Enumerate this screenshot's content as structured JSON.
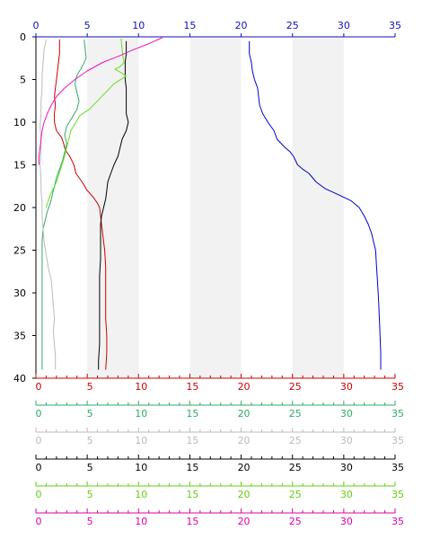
{
  "chart_data": {
    "type": "line",
    "orientation": "vertical-profile",
    "y_axis": {
      "min": 0,
      "max": 40,
      "ticks": [
        0,
        5,
        10,
        15,
        20,
        25,
        30,
        35,
        40
      ],
      "inverted": true,
      "color": "#000000"
    },
    "top_axis": {
      "min": 0,
      "max": 35,
      "ticks": [
        0,
        5,
        10,
        15,
        20,
        25,
        30,
        35
      ],
      "color": "#1111bb"
    },
    "bottom_axes": [
      {
        "min": 0,
        "max": 35,
        "ticks": [
          0,
          5,
          10,
          15,
          20,
          25,
          30,
          35
        ],
        "color": "#cc0000"
      },
      {
        "min": 0,
        "max": 35,
        "ticks": [
          0,
          5,
          10,
          15,
          20,
          25,
          30,
          35
        ],
        "color": "#33aa66"
      },
      {
        "min": 0,
        "max": 35,
        "ticks": [
          0,
          5,
          10,
          15,
          20,
          25,
          30,
          35
        ],
        "color": "#bbbbbb"
      },
      {
        "min": 0,
        "max": 35,
        "ticks": [
          0,
          5,
          10,
          15,
          20,
          25,
          30,
          35
        ],
        "color": "#000000"
      },
      {
        "min": 0,
        "max": 35,
        "ticks": [
          0,
          5,
          10,
          15,
          20,
          25,
          30,
          35
        ],
        "color": "#66cc11"
      },
      {
        "min": 0,
        "max": 35,
        "ticks": [
          0,
          5,
          10,
          15,
          20,
          25,
          30,
          35
        ],
        "color": "#dd00aa"
      }
    ],
    "shaded_bands": [
      [
        5,
        10
      ],
      [
        15,
        20
      ],
      [
        25,
        30
      ]
    ],
    "band_color": "#f2f2f2",
    "series": [
      {
        "color": "#0000cc",
        "points": [
          [
            20.8,
            0.5
          ],
          [
            20.8,
            2
          ],
          [
            21,
            3
          ],
          [
            21.1,
            4
          ],
          [
            21.3,
            5
          ],
          [
            21.6,
            6
          ],
          [
            21.7,
            7
          ],
          [
            21.8,
            8
          ],
          [
            22.1,
            9
          ],
          [
            22.6,
            10
          ],
          [
            23.2,
            11
          ],
          [
            23.5,
            12
          ],
          [
            24.3,
            13
          ],
          [
            24.8,
            13.5
          ],
          [
            25.1,
            14
          ],
          [
            25.5,
            15
          ],
          [
            26,
            15.5
          ],
          [
            26.6,
            16
          ],
          [
            27.3,
            17
          ],
          [
            28.2,
            17.8
          ],
          [
            29.5,
            18.5
          ],
          [
            30.7,
            19.2
          ],
          [
            31.5,
            20
          ],
          [
            32,
            21
          ],
          [
            32.4,
            22
          ],
          [
            32.7,
            23
          ],
          [
            32.9,
            24
          ],
          [
            33.1,
            25
          ],
          [
            33.2,
            27
          ],
          [
            33.3,
            29
          ],
          [
            33.4,
            31
          ],
          [
            33.5,
            34
          ],
          [
            33.6,
            37
          ],
          [
            33.6,
            39
          ]
        ]
      },
      {
        "color": "#cc0000",
        "points": [
          [
            2.3,
            0.3
          ],
          [
            2.3,
            2
          ],
          [
            2.2,
            3
          ],
          [
            2.1,
            4
          ],
          [
            2,
            5
          ],
          [
            1.9,
            6
          ],
          [
            1.8,
            7
          ],
          [
            1.9,
            8
          ],
          [
            1.8,
            9
          ],
          [
            1.8,
            10
          ],
          [
            2,
            11
          ],
          [
            2.5,
            11.8
          ],
          [
            2.7,
            12.5
          ],
          [
            2.8,
            13
          ],
          [
            3,
            13.5
          ],
          [
            3.3,
            14
          ],
          [
            3.5,
            14.5
          ],
          [
            3.7,
            15
          ],
          [
            3.9,
            16
          ],
          [
            4.5,
            17
          ],
          [
            5,
            18
          ],
          [
            5.6,
            18.8
          ],
          [
            6,
            19.5
          ],
          [
            6.2,
            20
          ],
          [
            6.3,
            21
          ],
          [
            6.4,
            22
          ],
          [
            6.5,
            23
          ],
          [
            6.6,
            24
          ],
          [
            6.7,
            25
          ],
          [
            6.8,
            27
          ],
          [
            6.8,
            29
          ],
          [
            6.8,
            31
          ],
          [
            6.8,
            33
          ],
          [
            6.9,
            35
          ],
          [
            6.9,
            37
          ],
          [
            6.8,
            39
          ]
        ]
      },
      {
        "color": "#33aa66",
        "points": [
          [
            4.7,
            0.3
          ],
          [
            4.8,
            1.5
          ],
          [
            4.9,
            2.5
          ],
          [
            4.5,
            3.5
          ],
          [
            4,
            4.5
          ],
          [
            3.8,
            5.5
          ],
          [
            4,
            6.5
          ],
          [
            4.2,
            7.5
          ],
          [
            4,
            8.5
          ],
          [
            3.5,
            9.5
          ],
          [
            3,
            10.5
          ],
          [
            2.8,
            11.5
          ],
          [
            3,
            12.5
          ],
          [
            2.8,
            13.5
          ],
          [
            2.6,
            14.5
          ],
          [
            2.3,
            15.5
          ],
          [
            2,
            16.5
          ],
          [
            1.8,
            17.5
          ],
          [
            1.6,
            18.5
          ],
          [
            1.4,
            19.5
          ],
          [
            1.1,
            20.5
          ],
          [
            0.9,
            21.5
          ],
          [
            0.7,
            22.5
          ],
          [
            0.6,
            24
          ],
          [
            0.6,
            26
          ],
          [
            0.6,
            28
          ],
          [
            0.6,
            30
          ],
          [
            0.6,
            32
          ],
          [
            0.6,
            34
          ],
          [
            0.6,
            36
          ],
          [
            0.6,
            38
          ],
          [
            0.6,
            39
          ]
        ]
      },
      {
        "color": "#bbbbbb",
        "points": [
          [
            1,
            0.3
          ],
          [
            0.8,
            1.5
          ],
          [
            0.7,
            3
          ],
          [
            0.6,
            4.5
          ],
          [
            0.6,
            6
          ],
          [
            0.5,
            7.5
          ],
          [
            0.5,
            9
          ],
          [
            0.4,
            10.5
          ],
          [
            0.5,
            12
          ],
          [
            0.5,
            13.5
          ],
          [
            0.4,
            15
          ],
          [
            0.5,
            16.5
          ],
          [
            0.5,
            18
          ],
          [
            0.6,
            19.5
          ],
          [
            0.6,
            21
          ],
          [
            0.7,
            22.5
          ],
          [
            0.8,
            24
          ],
          [
            1,
            25.5
          ],
          [
            1.2,
            27
          ],
          [
            1.5,
            28.5
          ],
          [
            1.6,
            30
          ],
          [
            1.7,
            31.5
          ],
          [
            1.8,
            33
          ],
          [
            1.7,
            34.5
          ],
          [
            1.8,
            36
          ],
          [
            1.9,
            37.5
          ],
          [
            1.9,
            39
          ]
        ]
      },
      {
        "color": "#000000",
        "points": [
          [
            8.8,
            0.5
          ],
          [
            8.8,
            2
          ],
          [
            8.7,
            3
          ],
          [
            8.7,
            4
          ],
          [
            8.7,
            5
          ],
          [
            8.8,
            6
          ],
          [
            8.8,
            7
          ],
          [
            8.8,
            8
          ],
          [
            8.8,
            9
          ],
          [
            9,
            10
          ],
          [
            8.8,
            11
          ],
          [
            8.4,
            12
          ],
          [
            8.2,
            13
          ],
          [
            8,
            14
          ],
          [
            7.6,
            15
          ],
          [
            7.3,
            16
          ],
          [
            7,
            17
          ],
          [
            6.9,
            18
          ],
          [
            6.8,
            19
          ],
          [
            6.6,
            20
          ],
          [
            6.4,
            21
          ],
          [
            6.3,
            22
          ],
          [
            6.3,
            23
          ],
          [
            6.3,
            24
          ],
          [
            6.3,
            26
          ],
          [
            6.2,
            28
          ],
          [
            6.2,
            30
          ],
          [
            6.2,
            32
          ],
          [
            6.2,
            34
          ],
          [
            6.2,
            36
          ],
          [
            6.1,
            38
          ],
          [
            6.1,
            39
          ]
        ]
      },
      {
        "color": "#66dd22",
        "points": [
          [
            8.3,
            0.2
          ],
          [
            8.4,
            1.5
          ],
          [
            8.5,
            2.5
          ],
          [
            8.6,
            3
          ],
          [
            8.2,
            3.5
          ],
          [
            7.7,
            3.8
          ],
          [
            8.3,
            4.2
          ],
          [
            8.8,
            4.6
          ],
          [
            7.6,
            5.5
          ],
          [
            6.8,
            6.5
          ],
          [
            6,
            7.5
          ],
          [
            5.2,
            8.5
          ],
          [
            4.3,
            9.2
          ],
          [
            3.9,
            10
          ],
          [
            3.4,
            11
          ],
          [
            3.1,
            12.5
          ],
          [
            2.8,
            14
          ],
          [
            2.4,
            15.5
          ],
          [
            2,
            17
          ],
          [
            1.4,
            18.5
          ],
          [
            1,
            20
          ]
        ]
      },
      {
        "color": "#ee11bb",
        "points": [
          [
            12.3,
            0.1
          ],
          [
            11,
            0.8
          ],
          [
            9.5,
            1.5
          ],
          [
            8,
            2.3
          ],
          [
            6.5,
            3
          ],
          [
            5,
            4
          ],
          [
            3.8,
            5
          ],
          [
            2.8,
            6
          ],
          [
            2,
            7
          ],
          [
            1.5,
            8
          ],
          [
            1.1,
            9
          ],
          [
            0.8,
            10
          ],
          [
            0.6,
            11
          ],
          [
            0.5,
            12
          ],
          [
            0.4,
            13
          ],
          [
            0.3,
            14
          ],
          [
            0.3,
            15
          ]
        ]
      }
    ]
  }
}
